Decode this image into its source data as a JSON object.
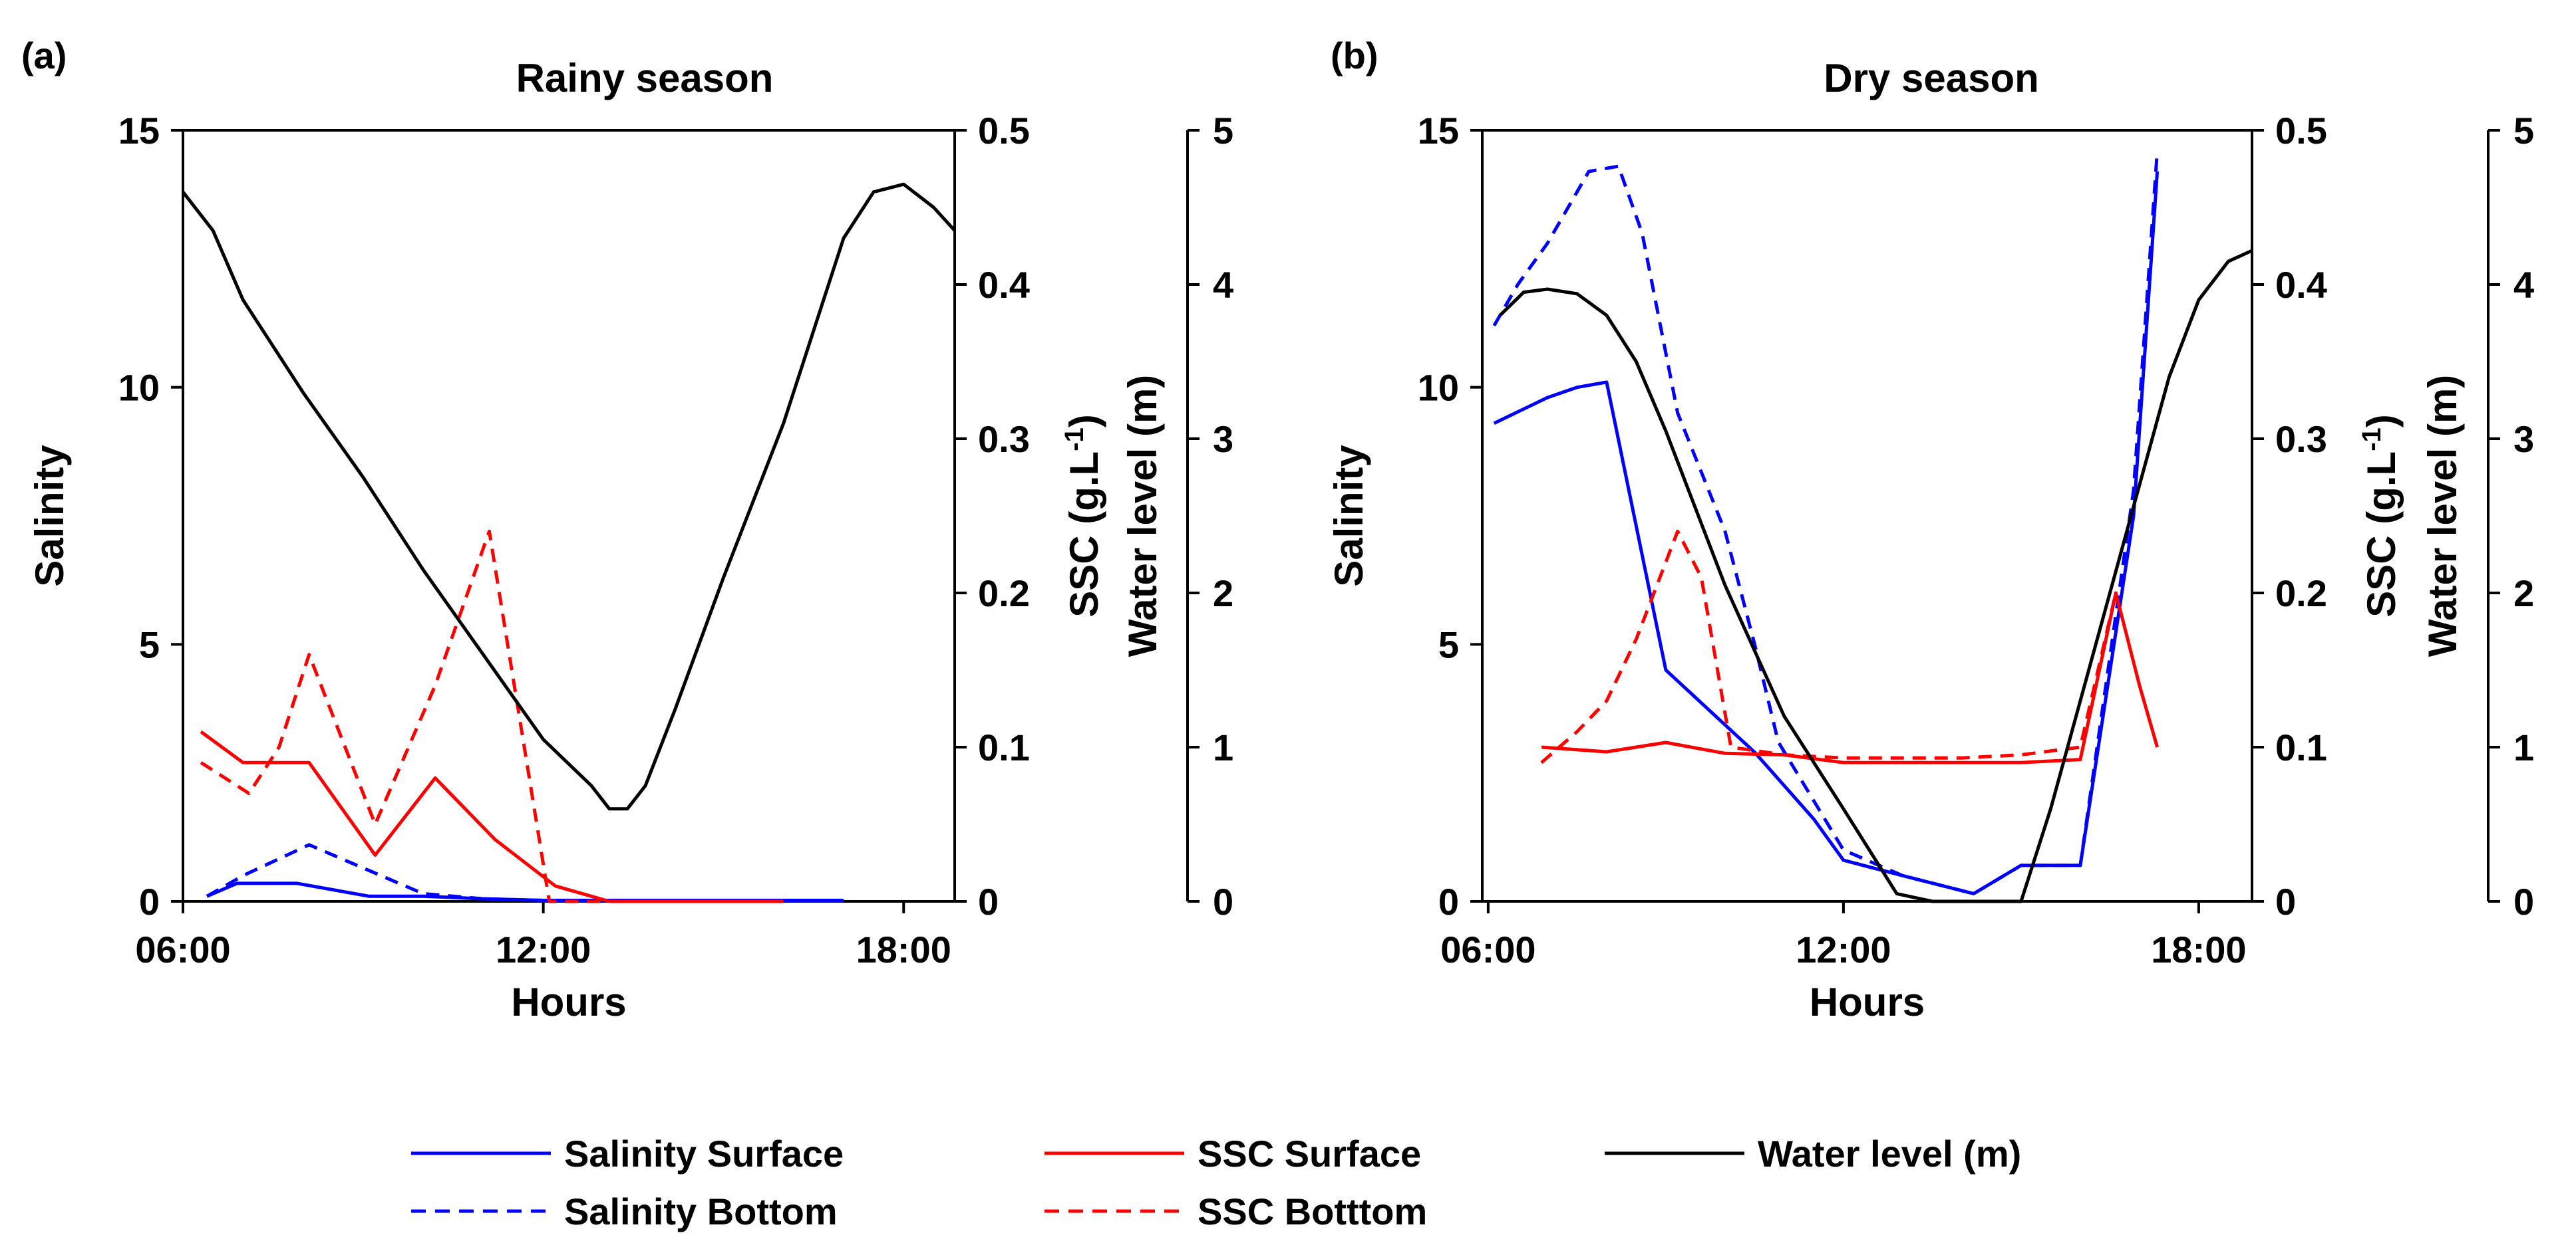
{
  "chart_data": [
    {
      "type": "line",
      "panel_label": "(a)",
      "title": "Rainy season",
      "xlabel": "Hours",
      "x_ticks": [
        "06:00",
        "12:00",
        "18:00"
      ],
      "xlim": [
        6.0,
        18.85
      ],
      "axes": {
        "salinity": {
          "label": "Salinity",
          "ylim": [
            0,
            15
          ],
          "ticks": [
            "0",
            "5",
            "10",
            "15"
          ]
        },
        "ssc": {
          "label": "SSC (g.L-1)",
          "label_main": "SSC (g.L",
          "label_sup": "-1",
          "label_end": ")",
          "ylim": [
            0,
            0.5
          ],
          "ticks": [
            "0",
            "0.1",
            "0.2",
            "0.3",
            "0.4",
            "0.5"
          ]
        },
        "water_level": {
          "label": "Water level (m)",
          "ylim": [
            0,
            5
          ],
          "ticks": [
            "0",
            "1",
            "2",
            "3",
            "4",
            "5"
          ]
        }
      },
      "series": [
        {
          "name": "Salinity Surface",
          "axis": "salinity",
          "color": "#0000ff",
          "dash": "solid",
          "x": [
            6.4,
            6.9,
            7.9,
            9.1,
            10.0,
            11.0,
            12.0,
            13.0,
            14.0,
            15.0,
            16.0,
            17.0
          ],
          "y": [
            0.1,
            0.35,
            0.35,
            0.1,
            0.1,
            0.05,
            0.02,
            0.02,
            0.02,
            0.02,
            0.02,
            0.02
          ]
        },
        {
          "name": "Salinity Bottom",
          "axis": "salinity",
          "color": "#0000ff",
          "dash": "dashed",
          "x": [
            6.4,
            7.0,
            8.1,
            9.1,
            10.0,
            11.0,
            12.0
          ],
          "y": [
            0.1,
            0.5,
            1.1,
            0.6,
            0.15,
            0.05,
            0.02
          ]
        },
        {
          "name": "SSC Surface",
          "axis": "ssc",
          "color": "#ff0000",
          "dash": "solid",
          "x": [
            6.3,
            7.0,
            8.1,
            9.2,
            10.2,
            11.2,
            12.2,
            13.1,
            13.8,
            15.0,
            16.0
          ],
          "y": [
            0.11,
            0.09,
            0.09,
            0.03,
            0.08,
            0.04,
            0.01,
            0.0,
            0.0,
            0.0,
            0.0
          ]
        },
        {
          "name": "SSC Botttom",
          "axis": "ssc",
          "color": "#ff0000",
          "dash": "dashed",
          "x": [
            6.3,
            6.7,
            7.1,
            7.6,
            8.1,
            9.2,
            10.2,
            11.1,
            12.1,
            12.4,
            13.5,
            14.5,
            15.5
          ],
          "y": [
            0.09,
            0.08,
            0.07,
            0.1,
            0.16,
            0.05,
            0.14,
            0.24,
            0.0,
            0.0,
            0.0,
            0.0,
            0.0
          ]
        },
        {
          "name": "Water level (m)",
          "axis": "water_level",
          "color": "#000000",
          "dash": "solid",
          "x": [
            6.0,
            6.5,
            7.0,
            8.0,
            9.0,
            10.0,
            11.0,
            12.0,
            12.8,
            13.1,
            13.4,
            13.7,
            14.2,
            15.0,
            16.0,
            17.0,
            17.5,
            18.0,
            18.5,
            18.85
          ],
          "y": [
            4.6,
            4.35,
            3.9,
            3.3,
            2.75,
            2.15,
            1.6,
            1.05,
            0.75,
            0.6,
            0.6,
            0.75,
            1.25,
            2.1,
            3.1,
            4.3,
            4.6,
            4.65,
            4.5,
            4.35
          ]
        }
      ]
    },
    {
      "type": "line",
      "panel_label": "(b)",
      "title": "Dry season",
      "xlabel": "Hours",
      "x_ticks": [
        "06:00",
        "12:00",
        "18:00"
      ],
      "xlim": [
        5.9,
        18.9
      ],
      "axes": {
        "salinity": {
          "label": "Salinity",
          "ylim": [
            0,
            15
          ],
          "ticks": [
            "0",
            "5",
            "10",
            "15"
          ]
        },
        "ssc": {
          "label": "SSC (g.L-1)",
          "label_main": "SSC (g.L",
          "label_sup": "-1",
          "label_end": ")",
          "ylim": [
            0,
            0.5
          ],
          "ticks": [
            "0",
            "0.1",
            "0.2",
            "0.3",
            "0.4",
            "0.5"
          ]
        },
        "water_level": {
          "label": "Water level (m)",
          "ylim": [
            0,
            5
          ],
          "ticks": [
            "0",
            "1",
            "2",
            "3",
            "4",
            "5"
          ]
        }
      },
      "series": [
        {
          "name": "Salinity Surface",
          "axis": "salinity",
          "color": "#0000ff",
          "dash": "solid",
          "x": [
            6.1,
            7.0,
            7.5,
            8.0,
            9.0,
            10.5,
            11.5,
            12.0,
            13.0,
            14.2,
            15.0,
            16.0,
            16.9,
            17.3
          ],
          "y": [
            9.3,
            9.8,
            10.0,
            10.1,
            4.5,
            2.9,
            1.6,
            0.8,
            0.5,
            0.15,
            0.7,
            0.7,
            7.5,
            14.2
          ]
        },
        {
          "name": "Salinity Bottom",
          "axis": "salinity",
          "color": "#0000ff",
          "dash": "dashed",
          "x": [
            6.1,
            6.5,
            7.0,
            7.7,
            8.2,
            8.6,
            9.2,
            10.0,
            10.5,
            10.9,
            12.0,
            13.0,
            14.2,
            15.0,
            16.0,
            16.9,
            17.3
          ],
          "y": [
            11.2,
            12.0,
            12.8,
            14.2,
            14.3,
            13.0,
            9.5,
            7.2,
            5.0,
            3.1,
            1.0,
            0.5,
            0.15,
            0.7,
            0.7,
            8.0,
            14.6
          ]
        },
        {
          "name": "SSC Surface",
          "axis": "ssc",
          "color": "#ff0000",
          "dash": "solid",
          "x": [
            6.9,
            8.0,
            9.0,
            10.0,
            11.0,
            12.0,
            13.0,
            14.2,
            15.0,
            16.0,
            16.6,
            17.0,
            17.3
          ],
          "y": [
            0.1,
            0.097,
            0.103,
            0.096,
            0.095,
            0.09,
            0.09,
            0.09,
            0.09,
            0.092,
            0.2,
            0.14,
            0.1
          ]
        },
        {
          "name": "SSC Botttom",
          "axis": "ssc",
          "color": "#ff0000",
          "dash": "dashed",
          "x": [
            6.9,
            7.5,
            8.0,
            8.5,
            9.2,
            9.6,
            10.1,
            11.0,
            12.0,
            13.0,
            14.0,
            15.0,
            16.0,
            16.6
          ],
          "y": [
            0.09,
            0.11,
            0.13,
            0.17,
            0.24,
            0.21,
            0.1,
            0.095,
            0.093,
            0.093,
            0.093,
            0.095,
            0.1,
            0.2
          ]
        },
        {
          "name": "Water level (m)",
          "axis": "water_level",
          "color": "#000000",
          "dash": "solid",
          "x": [
            6.2,
            6.6,
            7.0,
            7.5,
            8.0,
            8.5,
            9.0,
            10.0,
            11.0,
            12.0,
            12.9,
            13.5,
            15.0,
            15.5,
            16.0,
            16.5,
            17.0,
            17.5,
            18.0,
            18.5,
            18.9
          ],
          "y": [
            3.8,
            3.95,
            3.97,
            3.94,
            3.8,
            3.5,
            3.05,
            2.05,
            1.2,
            0.6,
            0.05,
            0.0,
            0.0,
            0.6,
            1.3,
            2.0,
            2.7,
            3.4,
            3.9,
            4.15,
            4.22
          ]
        }
      ]
    }
  ],
  "legend": {
    "placement": "bottom-center",
    "entries": [
      {
        "label": "Salinity Surface",
        "color": "#0000ff",
        "dash": "solid"
      },
      {
        "label": "Salinity Bottom",
        "color": "#0000ff",
        "dash": "dashed"
      },
      {
        "label": "SSC Surface",
        "color": "#ff0000",
        "dash": "solid"
      },
      {
        "label": "SSC Botttom",
        "color": "#ff0000",
        "dash": "dashed"
      },
      {
        "label": "Water level (m)",
        "color": "#000000",
        "dash": "solid"
      }
    ]
  }
}
